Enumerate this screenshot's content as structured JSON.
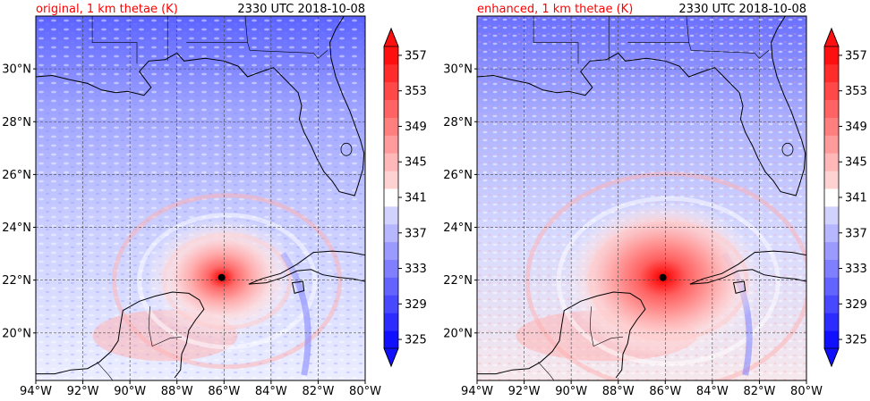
{
  "colors": {
    "title_accent": "#ff0000",
    "storm_center": "#000000",
    "cmap_low": "#1010ff",
    "cmap_mid": "#ffffff",
    "cmap_high": "#ff1010"
  },
  "storm_center": {
    "lon": -86.1,
    "lat": 22.1
  },
  "axes": {
    "lon_range": [
      -94,
      -80
    ],
    "lat_range": [
      18.2,
      32.0
    ],
    "lon_ticks": [
      -94,
      -92,
      -90,
      -88,
      -86,
      -84,
      -82,
      -80
    ],
    "lat_ticks": [
      20,
      22,
      24,
      26,
      28,
      30
    ],
    "lon_labels": [
      "94°W",
      "92°W",
      "90°W",
      "88°W",
      "86°W",
      "84°W",
      "82°W",
      "80°W"
    ],
    "lat_labels": [
      "20°N",
      "22°N",
      "24°N",
      "26°N",
      "28°N",
      "30°N"
    ],
    "gridlines": true
  },
  "colorbar": {
    "min": 325,
    "max": 359,
    "step": 2,
    "extend": "both",
    "tick_values": [
      325,
      329,
      333,
      337,
      341,
      345,
      349,
      353,
      357
    ],
    "tick_labels": [
      "325",
      "329",
      "333",
      "337",
      "341",
      "345",
      "349",
      "353",
      "357"
    ]
  },
  "panels": [
    {
      "id": "original",
      "title_left": "original, 1 km thetae (K)",
      "title_right": "2330 UTC 2018-10-08"
    },
    {
      "id": "enhanced",
      "title_left": "enhanced, 1 km thetae (K)",
      "title_right": "2330 UTC 2018-10-08"
    }
  ]
}
